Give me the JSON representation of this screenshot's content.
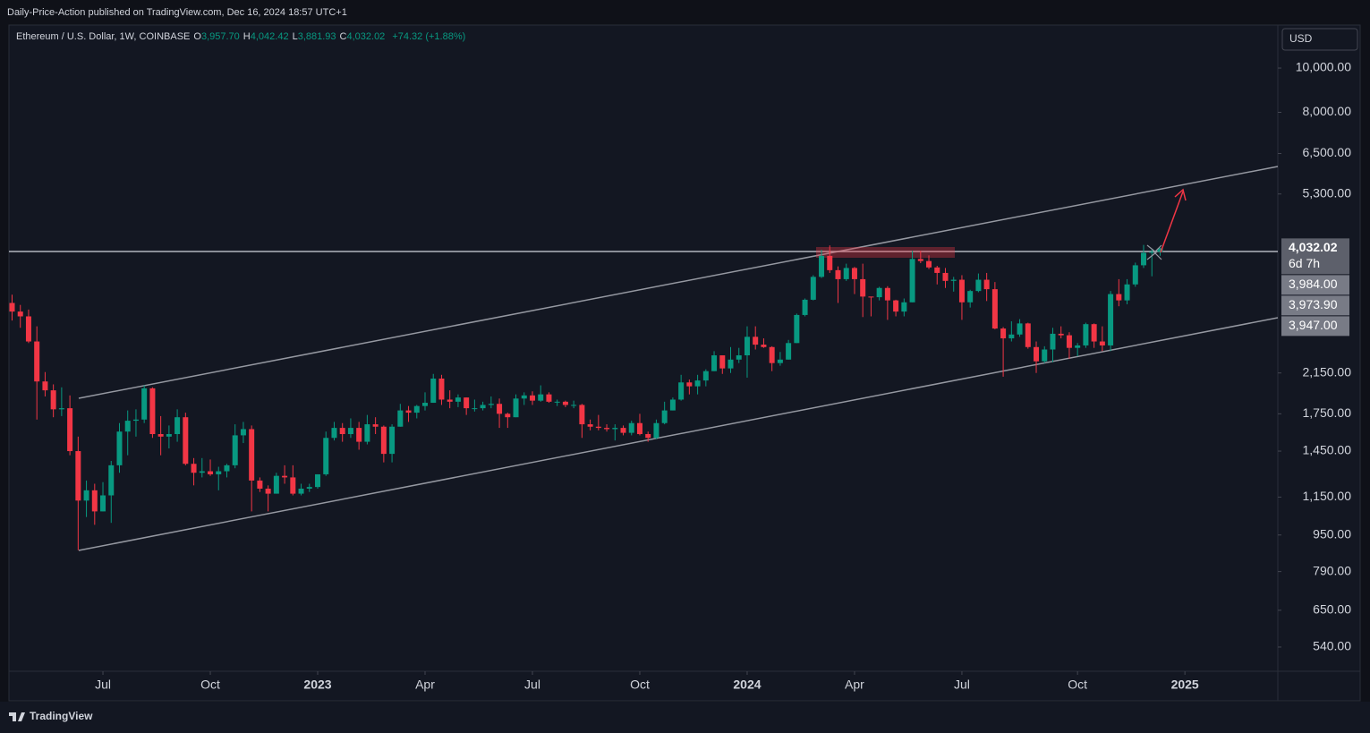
{
  "header": {
    "published": "Daily-Price-Action published on TradingView.com, Dec 16, 2024 18:57 UTC+1",
    "symbol": "Ethereum / U.S. Dollar, 1W, COINBASE",
    "ohlc": [
      {
        "key": "O",
        "value": "3,957.70"
      },
      {
        "key": "H",
        "value": "4,042.42"
      },
      {
        "key": "L",
        "value": "3,881.93"
      },
      {
        "key": "C",
        "value": "4,032.02"
      }
    ],
    "change": "+74.32 (+1.88%)",
    "currency": "USD"
  },
  "chart_data": {
    "type": "candlestick",
    "log_scale": true,
    "grid": false,
    "up_color": "#089981",
    "down_color": "#f23645",
    "ylim": [
      478,
      12420
    ],
    "yticks": [
      {
        "value": 10000,
        "label": "10,000.00"
      },
      {
        "value": 8000,
        "label": "8,000.00"
      },
      {
        "value": 6500,
        "label": "6,500.00"
      },
      {
        "value": 5300,
        "label": "5,300.00"
      },
      {
        "value": 2150,
        "label": "2,150.00"
      },
      {
        "value": 1750,
        "label": "1,750.00"
      },
      {
        "value": 1450,
        "label": "1,450.00"
      },
      {
        "value": 1150,
        "label": "1,150.00"
      },
      {
        "value": 950,
        "label": "950.00"
      },
      {
        "value": 790,
        "label": "790.00"
      },
      {
        "value": 650,
        "label": "650.00"
      },
      {
        "value": 540,
        "label": "540.00"
      }
    ],
    "xticks": [
      {
        "value": 11,
        "label": "Jul"
      },
      {
        "value": 24,
        "label": "Oct"
      },
      {
        "value": 37,
        "label": "2023"
      },
      {
        "value": 50,
        "label": "Apr"
      },
      {
        "value": 63,
        "label": "Jul"
      },
      {
        "value": 76,
        "label": "Oct"
      },
      {
        "value": 89,
        "label": "2024"
      },
      {
        "value": 102,
        "label": "Apr"
      },
      {
        "value": 115,
        "label": "Jul"
      },
      {
        "value": 129,
        "label": "Oct"
      },
      {
        "value": 142,
        "label": "2025"
      }
    ],
    "price_labels": [
      {
        "value": 4032.02,
        "label": "4,032.02",
        "countdown": "6d 7h"
      },
      {
        "value": 3984,
        "label": "3,984.00"
      },
      {
        "value": 3973.9,
        "label": "3,973.90"
      },
      {
        "value": 3947,
        "label": "3,947.00"
      }
    ],
    "open": [
      3060,
      2930,
      2860,
      2520,
      2060,
      1970,
      1790,
      1800,
      1450,
      1130,
      1190,
      1070,
      1160,
      1350,
      1600,
      1690,
      1700,
      1990,
      1580,
      1560,
      1580,
      1720,
      1360,
      1300,
      1310,
      1290,
      1310,
      1350,
      1570,
      1620,
      1250,
      1200,
      1170,
      1280,
      1270,
      1170,
      1200,
      1210,
      1290,
      1550,
      1630,
      1580,
      1630,
      1520,
      1660,
      1640,
      1430,
      1640,
      1780,
      1760,
      1820,
      1850,
      2090,
      1880,
      1860,
      1900,
      1800,
      1800,
      1830,
      1840,
      1750,
      1720,
      1890,
      1920,
      1870,
      1930,
      1860,
      1860,
      1830,
      1830,
      1660,
      1640,
      1630,
      1620,
      1630,
      1590,
      1670,
      1580,
      1550,
      1670,
      1780,
      1880,
      2050,
      2010,
      2070,
      2170,
      2350,
      2200,
      2300,
      2350,
      2580,
      2480,
      2450,
      2260,
      2300,
      2500,
      2880,
      3110,
      3490,
      3880,
      3610,
      3450,
      3650,
      3450,
      3160,
      3150,
      3300,
      3100,
      2930,
      3070,
      3820,
      3780,
      3660,
      3560,
      3420,
      3440,
      3070,
      3250,
      3440,
      3280,
      2690,
      2560,
      2610,
      2760,
      2450,
      2280,
      2420,
      2620,
      2600,
      2440,
      2470,
      2750,
      2520,
      2470,
      3200,
      3100,
      3360,
      3700,
      3940,
      3957.7
    ],
    "high": [
      3190,
      3030,
      2960,
      2720,
      2160,
      2030,
      2000,
      1920,
      1560,
      1250,
      1230,
      1240,
      1380,
      1670,
      1780,
      1790,
      2020,
      2000,
      1730,
      1650,
      1790,
      1760,
      1400,
      1400,
      1390,
      1340,
      1360,
      1660,
      1680,
      1650,
      1270,
      1220,
      1300,
      1350,
      1350,
      1230,
      1230,
      1290,
      1600,
      1680,
      1670,
      1710,
      1680,
      1740,
      1720,
      1650,
      1660,
      1840,
      1820,
      1830,
      1950,
      2140,
      2130,
      1970,
      1930,
      1900,
      1880,
      1860,
      1910,
      1890,
      1760,
      1930,
      1950,
      1960,
      2020,
      1950,
      1880,
      1870,
      1870,
      1840,
      1700,
      1740,
      1660,
      1660,
      1650,
      1690,
      1750,
      1600,
      1700,
      1860,
      1900,
      2130,
      2080,
      2130,
      2190,
      2400,
      2350,
      2450,
      2440,
      2720,
      2720,
      2560,
      2460,
      2390,
      2540,
      2900,
      3130,
      3520,
      4000,
      4090,
      3680,
      3730,
      3670,
      3730,
      3160,
      3320,
      3330,
      3110,
      3130,
      3980,
      3980,
      3890,
      3690,
      3650,
      3490,
      3520,
      3270,
      3550,
      3560,
      3400,
      2710,
      2790,
      2820,
      2770,
      2520,
      2460,
      2700,
      2720,
      2640,
      2500,
      2770,
      2760,
      2720,
      3250,
      3450,
      3450,
      3750,
      4100,
      4010,
      4042.42
    ],
    "low": [
      2800,
      2700,
      2500,
      1700,
      1910,
      1720,
      1730,
      1420,
      880,
      1040,
      1000,
      1070,
      1010,
      1300,
      1420,
      1560,
      1670,
      1550,
      1420,
      1470,
      1520,
      1350,
      1220,
      1270,
      1280,
      1190,
      1270,
      1330,
      1510,
      1070,
      1180,
      1070,
      1170,
      1230,
      1160,
      1160,
      1180,
      1200,
      1280,
      1530,
      1520,
      1550,
      1460,
      1500,
      1580,
      1370,
      1370,
      1640,
      1680,
      1710,
      1780,
      1850,
      1830,
      1800,
      1810,
      1740,
      1770,
      1780,
      1800,
      1630,
      1630,
      1720,
      1830,
      1830,
      1860,
      1850,
      1820,
      1810,
      1800,
      1550,
      1610,
      1610,
      1600,
      1530,
      1570,
      1570,
      1570,
      1520,
      1540,
      1660,
      1780,
      1870,
      1930,
      1930,
      2010,
      2170,
      2140,
      2150,
      2260,
      2100,
      2420,
      2440,
      2170,
      2230,
      2300,
      2500,
      2860,
      3100,
      3470,
      3560,
      3060,
      3420,
      3200,
      2850,
      2860,
      3100,
      2810,
      2860,
      2860,
      3070,
      3740,
      3630,
      3360,
      3300,
      3240,
      2810,
      2990,
      3230,
      3090,
      2680,
      2110,
      2520,
      2580,
      2430,
      2150,
      2260,
      2270,
      2560,
      2310,
      2340,
      2440,
      2440,
      2400,
      2400,
      3010,
      3040,
      3320,
      3650,
      3500,
      3881.93
    ],
    "close": [
      2930,
      2860,
      2520,
      2060,
      1970,
      1790,
      1800,
      1450,
      1130,
      1190,
      1070,
      1160,
      1350,
      1600,
      1690,
      1700,
      1990,
      1580,
      1560,
      1580,
      1720,
      1360,
      1300,
      1310,
      1290,
      1310,
      1350,
      1570,
      1620,
      1250,
      1200,
      1170,
      1280,
      1270,
      1170,
      1200,
      1210,
      1290,
      1550,
      1630,
      1580,
      1630,
      1520,
      1660,
      1640,
      1430,
      1640,
      1780,
      1760,
      1820,
      1850,
      2090,
      1880,
      1860,
      1900,
      1800,
      1800,
      1830,
      1840,
      1750,
      1720,
      1890,
      1920,
      1870,
      1930,
      1860,
      1860,
      1830,
      1830,
      1660,
      1640,
      1630,
      1620,
      1630,
      1590,
      1670,
      1580,
      1550,
      1670,
      1780,
      1880,
      2050,
      2010,
      2070,
      2170,
      2350,
      2200,
      2300,
      2350,
      2580,
      2480,
      2450,
      2260,
      2300,
      2500,
      2880,
      3110,
      3490,
      3880,
      3610,
      3450,
      3650,
      3450,
      3160,
      3150,
      3300,
      3100,
      2930,
      3070,
      3820,
      3780,
      3660,
      3560,
      3420,
      3440,
      3070,
      3250,
      3440,
      3280,
      2690,
      2560,
      2610,
      2760,
      2450,
      2280,
      2420,
      2620,
      2600,
      2440,
      2470,
      2750,
      2520,
      2470,
      3200,
      3100,
      3360,
      3700,
      3940,
      3957.7,
      4032.02
    ]
  },
  "footer": {
    "brand": "TradingView"
  }
}
